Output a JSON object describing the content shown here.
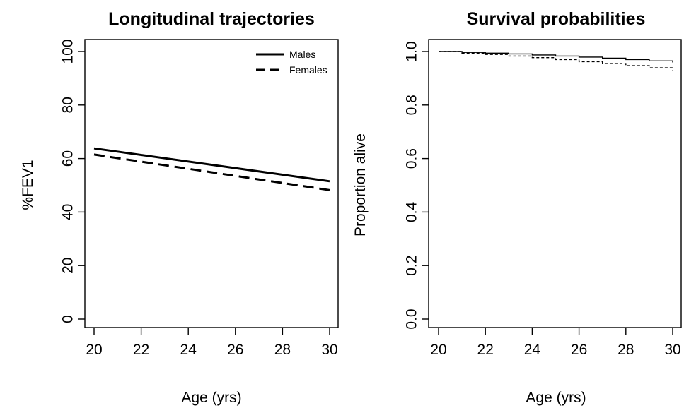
{
  "chart_data": [
    {
      "type": "line",
      "title": "Longitudinal trajectories",
      "xlabel": "Age (yrs)",
      "ylabel": "%FEV1",
      "xlim": [
        20,
        30
      ],
      "ylim": [
        0,
        100
      ],
      "xticks": [
        20,
        22,
        24,
        26,
        28,
        30
      ],
      "yticks": [
        0,
        20,
        40,
        60,
        80,
        100
      ],
      "x": [
        20,
        30
      ],
      "series": [
        {
          "name": "Males",
          "values": [
            63.8,
            51.5
          ],
          "style": "solid"
        },
        {
          "name": "Females",
          "values": [
            61.5,
            48.2
          ],
          "style": "dashed"
        }
      ],
      "legend_position": "top-right",
      "grid": false
    },
    {
      "type": "line",
      "title": "Survival probabilities",
      "xlabel": "Age (yrs)",
      "ylabel": "Proportion alive",
      "xlim": [
        20,
        30
      ],
      "ylim": [
        0,
        1
      ],
      "xticks": [
        20,
        22,
        24,
        26,
        28,
        30
      ],
      "yticks": [
        0.0,
        0.2,
        0.4,
        0.6,
        0.8,
        1.0
      ],
      "ytick_labels": [
        "0.0",
        "0.2",
        "0.4",
        "0.6",
        "0.8",
        "1.0"
      ],
      "step": true,
      "series": [
        {
          "style": "solid",
          "x": [
            20,
            21,
            22,
            23,
            24,
            25,
            26,
            27,
            28,
            29,
            30
          ],
          "values": [
            1.0,
            0.997,
            0.994,
            0.991,
            0.987,
            0.983,
            0.979,
            0.975,
            0.97,
            0.965,
            0.959
          ]
        },
        {
          "style": "dashed",
          "x": [
            20,
            21,
            22,
            23,
            24,
            25,
            26,
            27,
            28,
            29,
            30
          ],
          "values": [
            1.0,
            0.994,
            0.989,
            0.983,
            0.977,
            0.97,
            0.962,
            0.955,
            0.947,
            0.939,
            0.93
          ]
        }
      ],
      "grid": false
    }
  ]
}
